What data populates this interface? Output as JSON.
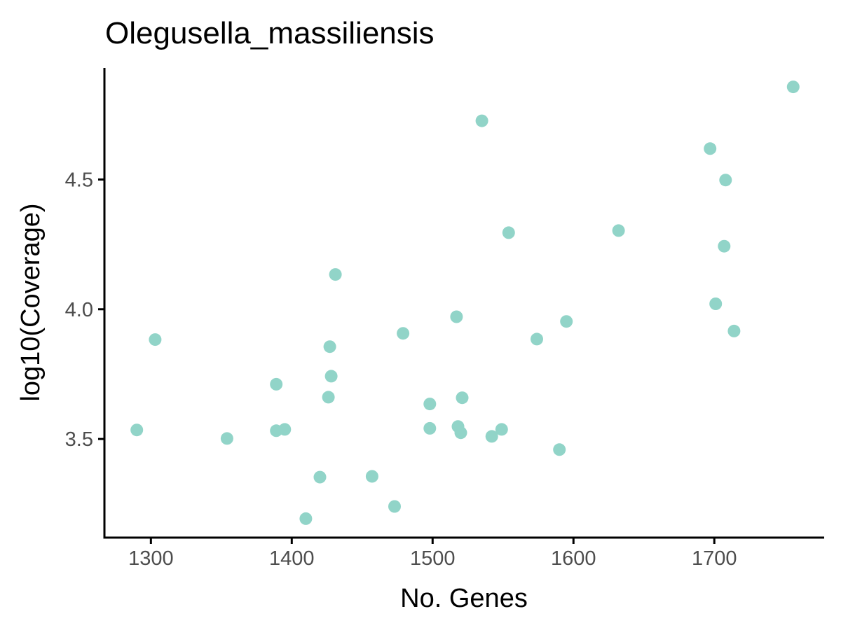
{
  "chart_data": {
    "type": "scatter",
    "title": "Olegusella_massiliensis",
    "xlabel": "No. Genes",
    "ylabel": "log10(Coverage)",
    "xlim": [
      1267,
      1778
    ],
    "ylim": [
      3.12,
      4.93
    ],
    "xticks": [
      1300,
      1400,
      1500,
      1600,
      1700
    ],
    "yticks": [
      3.5,
      4.0,
      4.5
    ],
    "grid": false,
    "legend": "none",
    "point_color": "#91d4c8",
    "points": [
      {
        "x": 1290,
        "y": 3.535
      },
      {
        "x": 1303,
        "y": 3.883
      },
      {
        "x": 1354,
        "y": 3.502
      },
      {
        "x": 1389,
        "y": 3.711
      },
      {
        "x": 1389,
        "y": 3.532
      },
      {
        "x": 1395,
        "y": 3.537
      },
      {
        "x": 1410,
        "y": 3.193
      },
      {
        "x": 1420,
        "y": 3.353
      },
      {
        "x": 1426,
        "y": 3.661
      },
      {
        "x": 1427,
        "y": 3.856
      },
      {
        "x": 1428,
        "y": 3.742
      },
      {
        "x": 1431,
        "y": 4.134
      },
      {
        "x": 1457,
        "y": 3.356
      },
      {
        "x": 1473,
        "y": 3.24
      },
      {
        "x": 1479,
        "y": 3.907
      },
      {
        "x": 1498,
        "y": 3.635
      },
      {
        "x": 1498,
        "y": 3.541
      },
      {
        "x": 1517,
        "y": 3.971
      },
      {
        "x": 1518,
        "y": 3.548
      },
      {
        "x": 1520,
        "y": 3.524
      },
      {
        "x": 1521,
        "y": 3.659
      },
      {
        "x": 1535,
        "y": 4.726
      },
      {
        "x": 1542,
        "y": 3.51
      },
      {
        "x": 1549,
        "y": 3.537
      },
      {
        "x": 1554,
        "y": 4.295
      },
      {
        "x": 1574,
        "y": 3.885
      },
      {
        "x": 1590,
        "y": 3.459
      },
      {
        "x": 1595,
        "y": 3.953
      },
      {
        "x": 1632,
        "y": 4.303
      },
      {
        "x": 1697,
        "y": 4.619
      },
      {
        "x": 1701,
        "y": 4.021
      },
      {
        "x": 1707,
        "y": 4.243
      },
      {
        "x": 1708,
        "y": 4.498
      },
      {
        "x": 1714,
        "y": 3.916
      },
      {
        "x": 1756,
        "y": 4.857
      }
    ]
  }
}
